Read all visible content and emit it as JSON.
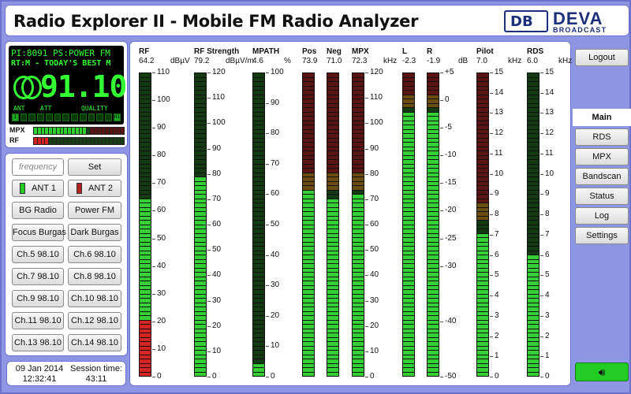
{
  "header": {
    "title": "Radio Explorer II - Mobile FM Radio Analyzer"
  },
  "logo": {
    "mark": "DB",
    "name": "DEVA",
    "sub": "BROADCAST"
  },
  "lcd": {
    "line1": "PI:8091 PS:POWER FM",
    "line2": "RT:M - TODAY'S BEST M",
    "frequency": "91.10",
    "ant_label": "ANT",
    "att_label": "ATT",
    "quality_label": "QUALITY",
    "blocks": [
      "1",
      "",
      "",
      "",
      "",
      "",
      "",
      "",
      "",
      "",
      "",
      "",
      "H1"
    ]
  },
  "mini_meters": {
    "mpx_label": "MPX",
    "rf_label": "RF"
  },
  "controls": {
    "frequency_placeholder": "frequency",
    "set": "Set",
    "ant1": "ANT 1",
    "ant2": "ANT 2",
    "presets": [
      "BG Radio",
      "Power FM",
      "Focus Burgas",
      "Dark Burgas",
      "Ch.5 98.10",
      "Ch.6 98.10",
      "Ch.7 98.10",
      "Ch.8 98.10",
      "Ch.9 98.10",
      "Ch.10 98.10",
      "Ch.11 98.10",
      "Ch.12 98.10",
      "Ch.13 98.10",
      "Ch.14 98.10"
    ]
  },
  "status": {
    "date": "09 Jan 2014",
    "time": "12:32:41",
    "session_label": "Session time:",
    "session": "43:11"
  },
  "nav": {
    "logout": "Logout",
    "items": [
      "Main",
      "RDS",
      "MPX",
      "Bandscan",
      "Status",
      "Log",
      "Settings"
    ],
    "active": "Main",
    "speaker_icon": "speaker-icon"
  },
  "meters": [
    {
      "name": "RF",
      "value": "64.2",
      "unit": "dBµV",
      "min": 0,
      "max": 110,
      "level": 64.2,
      "ticks": [
        "110",
        "100",
        "90",
        "80",
        "70",
        "60",
        "50",
        "40",
        "30",
        "20",
        "10",
        "0"
      ],
      "style": "rf"
    },
    {
      "name": "RF Strength",
      "value": "79.2",
      "unit": "dBµV/m",
      "min": 0,
      "max": 120,
      "level": 79.2,
      "ticks": [
        "120",
        "110",
        "100",
        "90",
        "80",
        "70",
        "60",
        "50",
        "40",
        "30",
        "20",
        "10",
        "0"
      ],
      "style": "green"
    },
    {
      "name": "MPATH",
      "value": "4.6",
      "unit": "%",
      "min": 0,
      "max": 100,
      "level": 4.6,
      "ticks": [
        "100",
        "90",
        "80",
        "70",
        "60",
        "50",
        "40",
        "30",
        "20",
        "10",
        "0"
      ],
      "style": "green"
    },
    {
      "name": "Pos",
      "value": "73.9",
      "unit": "",
      "min": 0,
      "max": 120,
      "level": 73.9,
      "ticks": [],
      "style": "mpx"
    },
    {
      "name": "Neg",
      "value": "71.0",
      "unit": "",
      "min": 0,
      "max": 120,
      "level": 71.0,
      "ticks": [],
      "style": "mpx"
    },
    {
      "name": "MPX",
      "value": "72.3",
      "unit": "kHz",
      "min": 0,
      "max": 120,
      "level": 72.3,
      "ticks": [
        "120",
        "110",
        "100",
        "90",
        "80",
        "70",
        "60",
        "50",
        "40",
        "30",
        "20",
        "10",
        "0"
      ],
      "style": "mpx"
    },
    {
      "name": "L",
      "value": "-2.3",
      "unit": "",
      "min": -50,
      "max": 5,
      "level": -2.3,
      "ticks": [],
      "style": "audio"
    },
    {
      "name": "R",
      "value": "-1.9",
      "unit": "dB",
      "min": -50,
      "max": 5,
      "level": -1.9,
      "ticks": [
        "+5",
        "0",
        "-5",
        "-10",
        "-15",
        "-20",
        "-25",
        "-30",
        "-40",
        "-50"
      ],
      "style": "audio"
    },
    {
      "name": "Pilot",
      "value": "7.0",
      "unit": "kHz",
      "min": 0,
      "max": 15,
      "level": 7.0,
      "ticks": [
        "15",
        "14",
        "13",
        "12",
        "11",
        "10",
        "9",
        "8",
        "7",
        "6",
        "5",
        "4",
        "3",
        "2",
        "1",
        "0"
      ],
      "style": "pilot"
    },
    {
      "name": "RDS",
      "value": "6.0",
      "unit": "kHz",
      "min": 0,
      "max": 15,
      "level": 6.0,
      "ticks": [
        "15",
        "14",
        "13",
        "12",
        "11",
        "10",
        "9",
        "8",
        "7",
        "6",
        "5",
        "4",
        "3",
        "2",
        "1",
        "0"
      ],
      "style": "green"
    }
  ]
}
